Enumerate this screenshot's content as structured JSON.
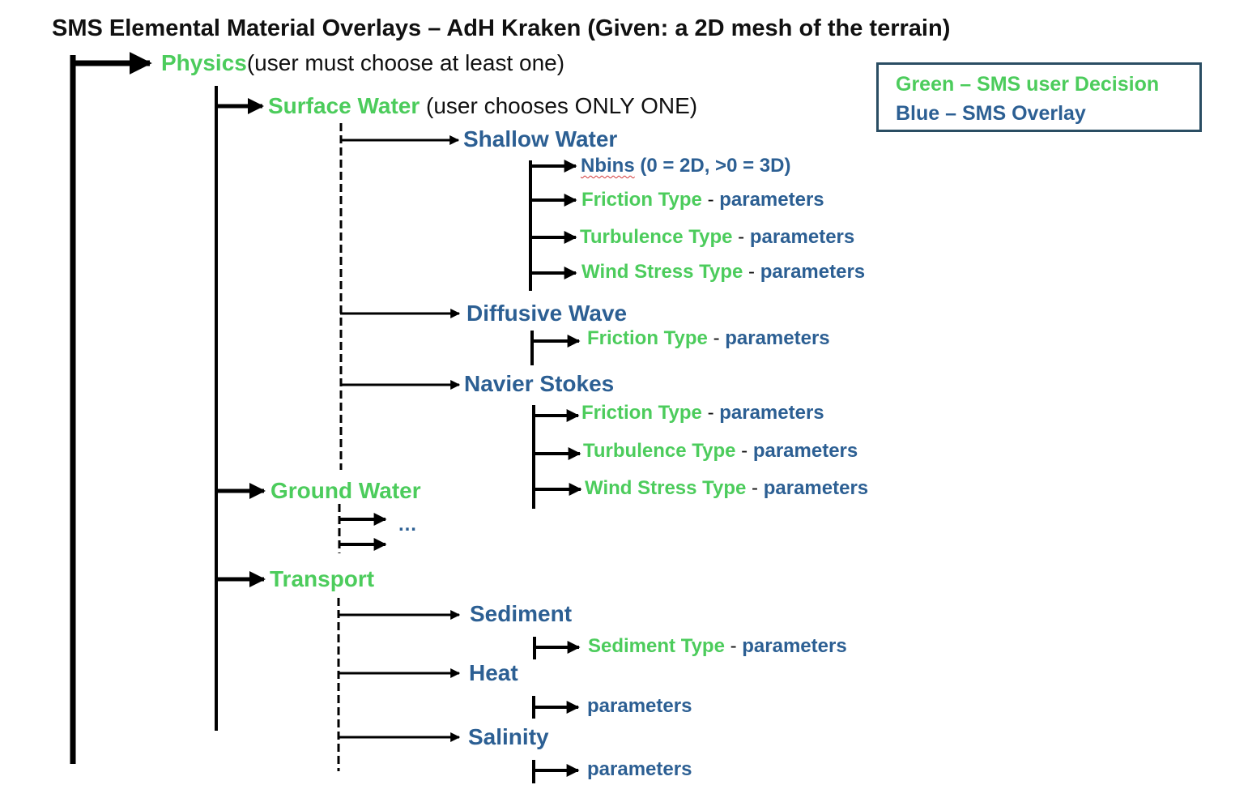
{
  "title": "SMS Elemental Material Overlays – AdH Kraken (Given: a 2D mesh of the terrain)",
  "legend": {
    "green": "Green – SMS user Decision",
    "blue": "Blue – SMS Overlay"
  },
  "colors": {
    "decision_green": "#4ccc5c",
    "overlay_blue": "#2c5f93",
    "text_black": "#111111"
  },
  "tree": {
    "physics": {
      "label": "Physics",
      "note": "(user must choose at least one)"
    },
    "surface_water": {
      "label": "Surface Water",
      "note": " (user chooses ONLY ONE)"
    },
    "shallow_water": {
      "label": "Shallow Water",
      "nbins": "Nbins",
      "nbins_note": " (0 = 2D, >0 = 3D)",
      "friction": "Friction Type",
      "turbulence": "Turbulence Type",
      "wind": "Wind Stress Type"
    },
    "diffusive_wave": {
      "label": "Diffusive Wave",
      "friction": "Friction Type"
    },
    "navier_stokes": {
      "label": "Navier Stokes",
      "friction": "Friction Type",
      "turbulence": "Turbulence Type",
      "wind": "Wind Stress Type"
    },
    "ground_water": {
      "label": "Ground Water",
      "ellipsis": "…"
    },
    "transport": {
      "label": "Transport"
    },
    "sediment": {
      "label": "Sediment",
      "type": "Sediment Type"
    },
    "heat": {
      "label": "Heat"
    },
    "salinity": {
      "label": "Salinity"
    },
    "dash": " - ",
    "parameters": "parameters"
  }
}
